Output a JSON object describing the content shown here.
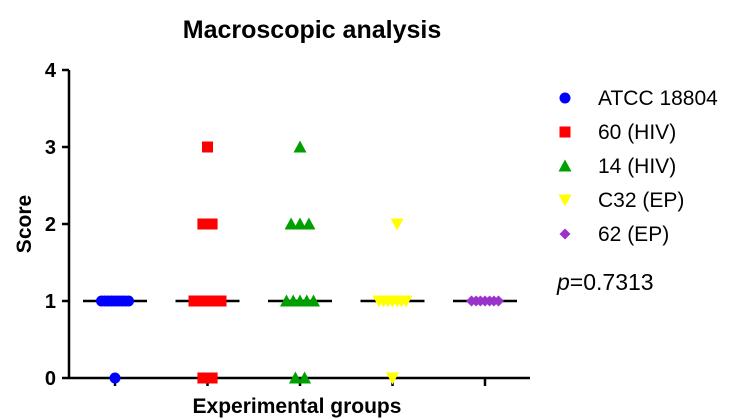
{
  "chart_data": {
    "type": "scatter",
    "title": "Macroscopic analysis",
    "xlabel": "Experimental groups",
    "ylabel": "Score",
    "ylim": [
      0,
      4
    ],
    "yticks": [
      "0",
      "1",
      "2",
      "3",
      "4"
    ],
    "legend_position": "right",
    "annotation": {
      "prefix": "p",
      "text": "=0.7313"
    },
    "series": [
      {
        "name": "ATCC 18804",
        "color": "#0000ff",
        "marker": "circle",
        "median": 1,
        "points": [
          [
            -0.5,
            1
          ],
          [
            -0.375,
            1
          ],
          [
            -0.25,
            1
          ],
          [
            -0.125,
            1
          ],
          [
            0,
            1
          ],
          [
            0.125,
            1
          ],
          [
            0.25,
            1
          ],
          [
            0.375,
            1
          ],
          [
            0.5,
            1
          ],
          [
            0,
            0
          ]
        ]
      },
      {
        "name": "60 (HIV)",
        "color": "#ff0000",
        "marker": "square",
        "median": 1,
        "points": [
          [
            0,
            3
          ],
          [
            -0.17,
            2
          ],
          [
            0.17,
            2
          ],
          [
            -0.5,
            1
          ],
          [
            -0.33,
            1
          ],
          [
            -0.17,
            1
          ],
          [
            0,
            1
          ],
          [
            0.17,
            1
          ],
          [
            0.33,
            1
          ],
          [
            0.5,
            1
          ],
          [
            -0.17,
            0
          ],
          [
            0.17,
            0
          ]
        ]
      },
      {
        "name": "14 (HIV)",
        "color": "#00a000",
        "marker": "triangle-up",
        "median": 1,
        "points": [
          [
            0,
            3
          ],
          [
            -0.33,
            2
          ],
          [
            0,
            2
          ],
          [
            0.33,
            2
          ],
          [
            -0.5,
            1
          ],
          [
            -0.25,
            1
          ],
          [
            0,
            1
          ],
          [
            0.25,
            1
          ],
          [
            0.5,
            1
          ],
          [
            -0.17,
            0
          ],
          [
            0.17,
            0
          ]
        ]
      },
      {
        "name": "C32 (EP)",
        "color": "#ffff00",
        "marker": "triangle-down",
        "median": 1,
        "points": [
          [
            0.17,
            2
          ],
          [
            -0.5,
            1
          ],
          [
            -0.33,
            1
          ],
          [
            -0.17,
            1
          ],
          [
            0,
            1
          ],
          [
            0.17,
            1
          ],
          [
            0.33,
            1
          ],
          [
            0.5,
            1
          ],
          [
            0,
            0
          ]
        ]
      },
      {
        "name": "62 (EP)",
        "color": "#9933cc",
        "marker": "diamond",
        "median": 1,
        "points": [
          [
            -0.5,
            1
          ],
          [
            -0.33,
            1
          ],
          [
            -0.17,
            1
          ],
          [
            0,
            1
          ],
          [
            0.17,
            1
          ],
          [
            0.33,
            1
          ],
          [
            0.5,
            1
          ]
        ]
      }
    ]
  }
}
